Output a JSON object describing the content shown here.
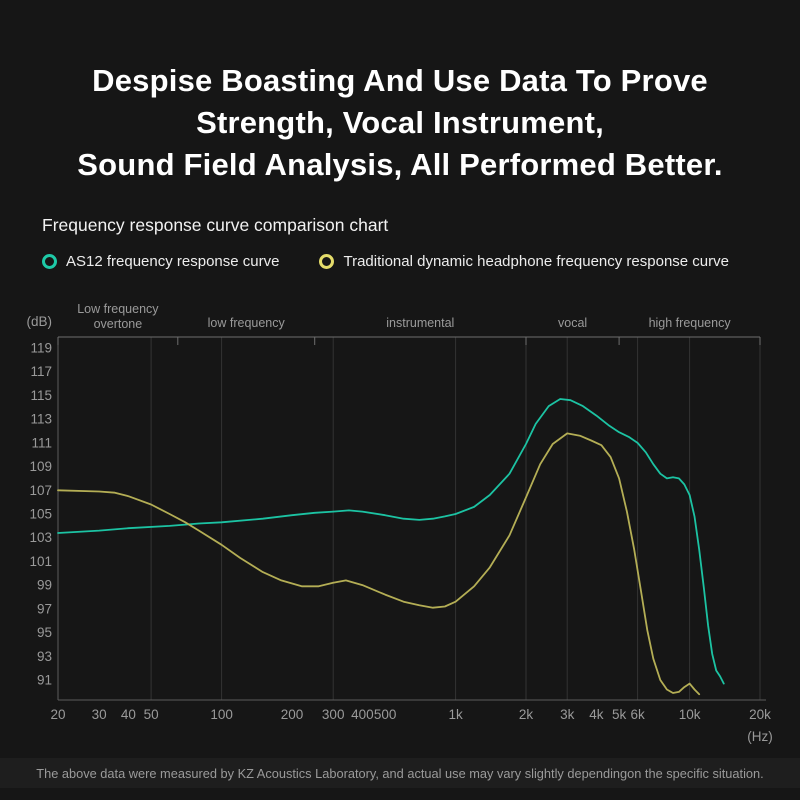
{
  "title": {
    "line1": "Despise Boasting And Use Data To Prove",
    "line2": "Strength, Vocal Instrument,",
    "line3": "Sound Field Analysis, All Performed Better."
  },
  "subtitle": "Frequency response curve comparison chart",
  "legend": [
    {
      "label": "AS12 frequency response curve",
      "color": "#1ec9a7"
    },
    {
      "label": "Traditional dynamic headphone frequency response curve",
      "color": "#e4dc6a"
    }
  ],
  "footer": "The above data were measured by KZ Acoustics Laboratory, and actual use may vary slightly dependingon the specific situation.",
  "chart_data": {
    "type": "line",
    "x_scale": "log",
    "xlim": [
      20,
      20000
    ],
    "ylim": [
      89,
      120
    ],
    "x_unit_label": "(Hz)",
    "y_unit_label": "(dB)",
    "grid": "partial-vertical",
    "legend_position": "above-chart",
    "y_ticks": [
      119,
      117,
      115,
      113,
      111,
      109,
      107,
      105,
      103,
      101,
      99,
      97,
      95,
      93,
      91
    ],
    "x_ticks": [
      {
        "v": 20,
        "label": "20"
      },
      {
        "v": 30,
        "label": "30"
      },
      {
        "v": 40,
        "label": "40"
      },
      {
        "v": 50,
        "label": "50"
      },
      {
        "v": 100,
        "label": "100"
      },
      {
        "v": 200,
        "label": "200"
      },
      {
        "v": 300,
        "label": "300"
      },
      {
        "v": 400,
        "label": "400"
      },
      {
        "v": 500,
        "label": "500"
      },
      {
        "v": 1000,
        "label": "1k"
      },
      {
        "v": 2000,
        "label": "2k"
      },
      {
        "v": 3000,
        "label": "3k"
      },
      {
        "v": 4000,
        "label": "4k"
      },
      {
        "v": 5000,
        "label": "5k"
      },
      {
        "v": 6000,
        "label": "6k"
      },
      {
        "v": 10000,
        "label": "10k"
      },
      {
        "v": 20000,
        "label": "20k"
      }
    ],
    "grid_x": [
      50,
      100,
      300,
      1000,
      2000,
      3000,
      6000,
      10000,
      20000
    ],
    "bands": [
      {
        "label": "Low frequency\novertone",
        "from": 20,
        "to": 65
      },
      {
        "label": "low frequency",
        "from": 65,
        "to": 250
      },
      {
        "label": "instrumental",
        "from": 250,
        "to": 2000
      },
      {
        "label": "vocal",
        "from": 2000,
        "to": 5000
      },
      {
        "label": "high frequency",
        "from": 5000,
        "to": 20000
      }
    ],
    "colors": {
      "grid": "#343434",
      "axis": "#5c5c5c",
      "band_line": "#6e6e6e",
      "tick_text": "#9a9a9a",
      "band_text": "#9a9a9a"
    },
    "series": [
      {
        "name": "AS12 frequency response curve",
        "color": "#1cc3a3",
        "points": [
          [
            20,
            103.4
          ],
          [
            30,
            103.6
          ],
          [
            40,
            103.8
          ],
          [
            60,
            104.0
          ],
          [
            80,
            104.2
          ],
          [
            100,
            104.3
          ],
          [
            150,
            104.6
          ],
          [
            200,
            104.9
          ],
          [
            250,
            105.1
          ],
          [
            300,
            105.2
          ],
          [
            350,
            105.3
          ],
          [
            400,
            105.2
          ],
          [
            500,
            104.9
          ],
          [
            600,
            104.6
          ],
          [
            700,
            104.5
          ],
          [
            800,
            104.6
          ],
          [
            900,
            104.8
          ],
          [
            1000,
            105.0
          ],
          [
            1200,
            105.6
          ],
          [
            1400,
            106.6
          ],
          [
            1700,
            108.4
          ],
          [
            2000,
            110.9
          ],
          [
            2200,
            112.6
          ],
          [
            2500,
            114.1
          ],
          [
            2800,
            114.7
          ],
          [
            3100,
            114.6
          ],
          [
            3500,
            114.1
          ],
          [
            4000,
            113.3
          ],
          [
            4500,
            112.5
          ],
          [
            5000,
            111.9
          ],
          [
            5500,
            111.5
          ],
          [
            6000,
            111.0
          ],
          [
            6500,
            110.2
          ],
          [
            7000,
            109.2
          ],
          [
            7500,
            108.4
          ],
          [
            8000,
            108.0
          ],
          [
            8500,
            108.1
          ],
          [
            9000,
            108.0
          ],
          [
            9500,
            107.5
          ],
          [
            10000,
            106.6
          ],
          [
            10500,
            104.8
          ],
          [
            11000,
            102.0
          ],
          [
            11500,
            98.8
          ],
          [
            12000,
            95.6
          ],
          [
            12500,
            93.2
          ],
          [
            13000,
            91.8
          ],
          [
            13500,
            91.3
          ],
          [
            14000,
            90.7
          ]
        ]
      },
      {
        "name": "Traditional dynamic headphone frequency response curve",
        "color": "#b4ae55",
        "points": [
          [
            20,
            107.0
          ],
          [
            30,
            106.9
          ],
          [
            35,
            106.8
          ],
          [
            40,
            106.5
          ],
          [
            50,
            105.8
          ],
          [
            60,
            105.0
          ],
          [
            70,
            104.3
          ],
          [
            80,
            103.6
          ],
          [
            100,
            102.4
          ],
          [
            120,
            101.3
          ],
          [
            150,
            100.1
          ],
          [
            180,
            99.4
          ],
          [
            220,
            98.9
          ],
          [
            260,
            98.9
          ],
          [
            300,
            99.2
          ],
          [
            340,
            99.4
          ],
          [
            400,
            99.0
          ],
          [
            500,
            98.2
          ],
          [
            600,
            97.6
          ],
          [
            700,
            97.3
          ],
          [
            800,
            97.1
          ],
          [
            900,
            97.2
          ],
          [
            1000,
            97.6
          ],
          [
            1200,
            98.9
          ],
          [
            1400,
            100.5
          ],
          [
            1700,
            103.2
          ],
          [
            2000,
            106.4
          ],
          [
            2300,
            109.2
          ],
          [
            2600,
            110.9
          ],
          [
            3000,
            111.8
          ],
          [
            3400,
            111.6
          ],
          [
            3800,
            111.2
          ],
          [
            4200,
            110.8
          ],
          [
            4600,
            109.8
          ],
          [
            5000,
            108.0
          ],
          [
            5400,
            105.2
          ],
          [
            5800,
            102.0
          ],
          [
            6200,
            98.5
          ],
          [
            6600,
            95.2
          ],
          [
            7000,
            92.8
          ],
          [
            7500,
            91.0
          ],
          [
            8000,
            90.2
          ],
          [
            8500,
            89.9
          ],
          [
            9000,
            90.0
          ],
          [
            9500,
            90.4
          ],
          [
            10000,
            90.7
          ],
          [
            10500,
            90.2
          ],
          [
            11000,
            89.8
          ]
        ]
      }
    ]
  }
}
